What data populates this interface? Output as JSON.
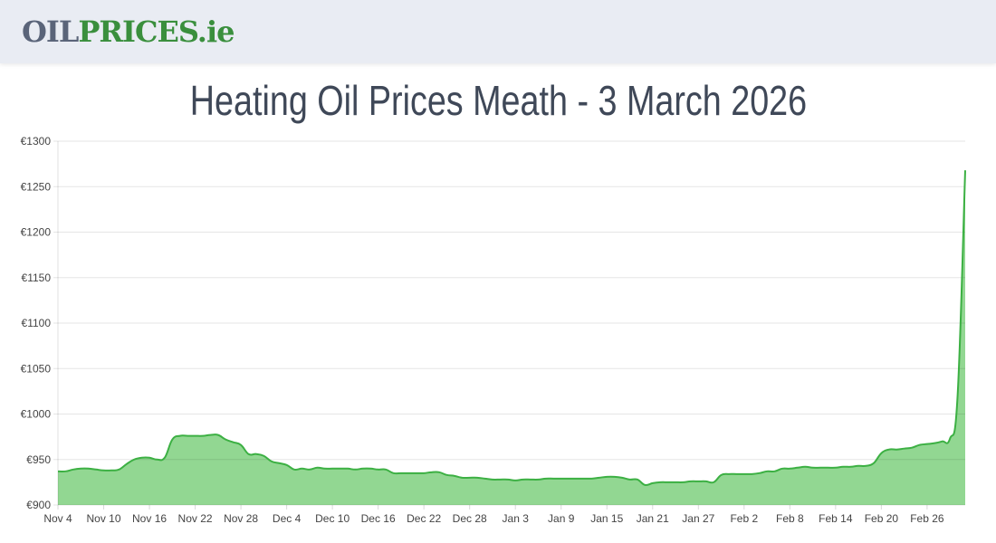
{
  "header": {
    "logo_part1": "OIL",
    "logo_part2": "PRICES.ie"
  },
  "title": "Heating Oil Prices Meath - 3 March 2026",
  "chart_data": {
    "type": "area",
    "title": "Heating Oil Prices Meath - 3 March 2026",
    "xlabel": "",
    "ylabel": "",
    "ylim": [
      900,
      1300
    ],
    "y_ticks": [
      "€900",
      "€950",
      "€1000",
      "€1050",
      "€1100",
      "€1150",
      "€1200",
      "€1250",
      "€1300"
    ],
    "y_tick_values": [
      900,
      950,
      1000,
      1050,
      1100,
      1150,
      1200,
      1250,
      1300
    ],
    "x_ticks": [
      "Nov 4",
      "Nov 10",
      "Nov 16",
      "Nov 22",
      "Nov 28",
      "Dec 4",
      "Dec 10",
      "Dec 16",
      "Dec 22",
      "Dec 28",
      "Jan 3",
      "Jan 9",
      "Jan 15",
      "Jan 21",
      "Jan 27",
      "Feb 2",
      "Feb 8",
      "Feb 14",
      "Feb 20",
      "Feb 26"
    ],
    "grid": true,
    "line_color": "#3cb043",
    "fill_color": "#7fd07f",
    "x": [
      "Nov 4",
      "Nov 5",
      "Nov 6",
      "Nov 7",
      "Nov 8",
      "Nov 9",
      "Nov 10",
      "Nov 11",
      "Nov 12",
      "Nov 13",
      "Nov 14",
      "Nov 15",
      "Nov 16",
      "Nov 17",
      "Nov 18",
      "Nov 19",
      "Nov 20",
      "Nov 21",
      "Nov 22",
      "Nov 23",
      "Nov 24",
      "Nov 25",
      "Nov 26",
      "Nov 27",
      "Nov 28",
      "Nov 29",
      "Nov 30",
      "Dec 1",
      "Dec 2",
      "Dec 3",
      "Dec 4",
      "Dec 5",
      "Dec 6",
      "Dec 7",
      "Dec 8",
      "Dec 9",
      "Dec 10",
      "Dec 11",
      "Dec 12",
      "Dec 13",
      "Dec 14",
      "Dec 15",
      "Dec 16",
      "Dec 17",
      "Dec 18",
      "Dec 19",
      "Dec 20",
      "Dec 21",
      "Dec 22",
      "Dec 23",
      "Dec 24",
      "Dec 25",
      "Dec 26",
      "Dec 27",
      "Dec 28",
      "Dec 29",
      "Dec 30",
      "Dec 31",
      "Jan 1",
      "Jan 2",
      "Jan 3",
      "Jan 4",
      "Jan 5",
      "Jan 6",
      "Jan 7",
      "Jan 8",
      "Jan 9",
      "Jan 10",
      "Jan 11",
      "Jan 12",
      "Jan 13",
      "Jan 14",
      "Jan 15",
      "Jan 16",
      "Jan 17",
      "Jan 18",
      "Jan 19",
      "Jan 20",
      "Jan 21",
      "Jan 22",
      "Jan 23",
      "Jan 24",
      "Jan 25",
      "Jan 26",
      "Jan 27",
      "Jan 28",
      "Jan 29",
      "Jan 30",
      "Jan 31",
      "Feb 1",
      "Feb 2",
      "Feb 3",
      "Feb 4",
      "Feb 5",
      "Feb 6",
      "Feb 7",
      "Feb 8",
      "Feb 9",
      "Feb 10",
      "Feb 11",
      "Feb 12",
      "Feb 13",
      "Feb 14",
      "Feb 15",
      "Feb 16",
      "Feb 17",
      "Feb 18",
      "Feb 19",
      "Feb 20",
      "Feb 21",
      "Feb 22",
      "Feb 23",
      "Feb 24",
      "Feb 25",
      "Feb 26",
      "Feb 27",
      "Feb 28",
      "Mar 1",
      "Mar 2",
      "Mar 3"
    ],
    "values": [
      937,
      937,
      939,
      940,
      940,
      939,
      938,
      938,
      939,
      945,
      950,
      952,
      952,
      950,
      952,
      972,
      976,
      976,
      976,
      976,
      977,
      977,
      972,
      969,
      966,
      956,
      956,
      954,
      948,
      946,
      944,
      939,
      940,
      939,
      941,
      940,
      940,
      940,
      940,
      939,
      940,
      940,
      939,
      939,
      935,
      935,
      935,
      935,
      935,
      936,
      936,
      933,
      932,
      930,
      930,
      930,
      929,
      928,
      928,
      928,
      927,
      928,
      928,
      928,
      929,
      929,
      929,
      929,
      929,
      929,
      929,
      930,
      931,
      931,
      930,
      928,
      928,
      922,
      924,
      925,
      925,
      925,
      925,
      926,
      926,
      926,
      925,
      933,
      934,
      934,
      934,
      934,
      935,
      937,
      937,
      940,
      940,
      941,
      942,
      941,
      941,
      941,
      941,
      942,
      942,
      943,
      943,
      946,
      957,
      961,
      961,
      962,
      963,
      966,
      967,
      968,
      970,
      973,
      1020,
      1268
    ]
  }
}
